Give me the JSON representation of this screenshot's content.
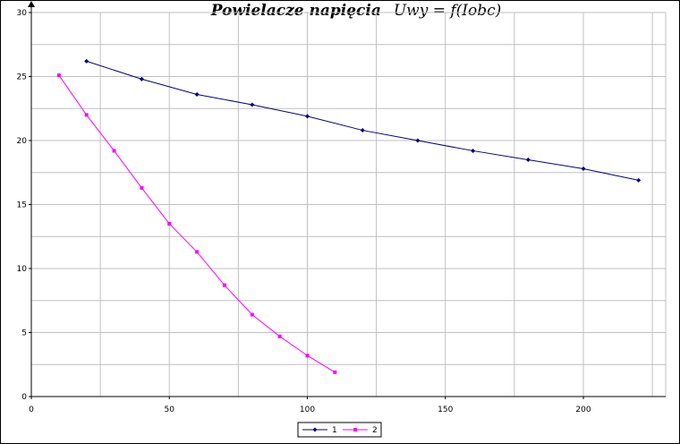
{
  "chart_data": {
    "type": "line",
    "title": "Powielacze napięcia",
    "subtitle": "Uwy = f(Iobc)",
    "xlabel": "",
    "ylabel": "",
    "xlim": [
      0,
      225
    ],
    "ylim": [
      0,
      30
    ],
    "xticks": [
      0,
      50,
      100,
      150,
      200
    ],
    "yticks": [
      0,
      5,
      10,
      15,
      20,
      25,
      30
    ],
    "grid": true,
    "legend_position": "bottom-center",
    "series": [
      {
        "name": "1",
        "color": "#000080",
        "marker": "diamond",
        "x": [
          20,
          40,
          60,
          80,
          100,
          120,
          140,
          160,
          180,
          200,
          220
        ],
        "y": [
          26.2,
          24.8,
          23.6,
          22.8,
          21.9,
          20.8,
          20.0,
          19.2,
          18.5,
          17.8,
          16.9
        ]
      },
      {
        "name": "2",
        "color": "#ff00ff",
        "marker": "square",
        "x": [
          10,
          20,
          30,
          40,
          50,
          60,
          70,
          80,
          90,
          100,
          110
        ],
        "y": [
          25.1,
          22.0,
          19.2,
          16.3,
          13.5,
          11.3,
          8.7,
          6.4,
          4.7,
          3.2,
          1.9
        ]
      }
    ]
  }
}
